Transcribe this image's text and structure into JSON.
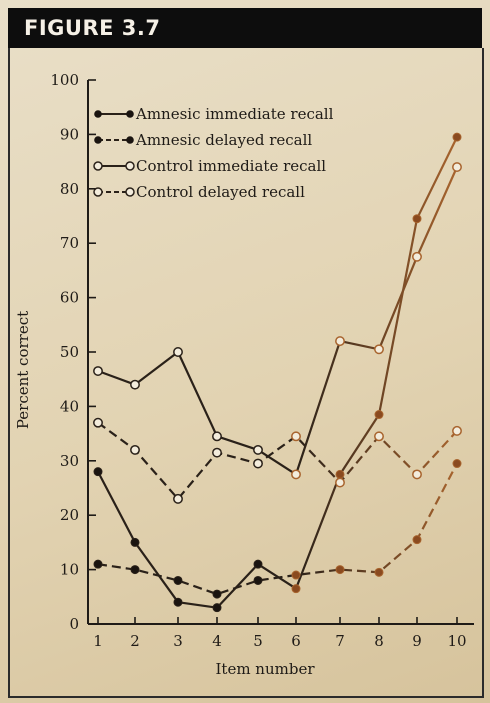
{
  "figure_label": "FIGURE 3.7",
  "chart_data": {
    "type": "line",
    "xlabel": "Item number",
    "ylabel": "Percent correct",
    "x": [
      1,
      2,
      3,
      4,
      5,
      6,
      7,
      8,
      9,
      10
    ],
    "xlim": [
      0.5,
      10.5
    ],
    "ylim": [
      0,
      100
    ],
    "yticks": [
      0,
      10,
      20,
      30,
      40,
      50,
      60,
      70,
      80,
      90,
      100
    ],
    "grid": false,
    "legend_position": "top-left",
    "series": [
      {
        "name": "Amnesic immediate recall",
        "marker": "filled",
        "dash": "solid",
        "values": [
          28,
          15,
          4,
          3,
          11,
          6.5,
          27.5,
          38.5,
          74.5,
          89.5
        ]
      },
      {
        "name": "Amnesic delayed recall",
        "marker": "filled",
        "dash": "dashed",
        "values": [
          11,
          10,
          8,
          5.5,
          8,
          9,
          10,
          9.5,
          15.5,
          29.5
        ]
      },
      {
        "name": "Control immediate recall",
        "marker": "open",
        "dash": "solid",
        "values": [
          46.5,
          44,
          50,
          34.5,
          32,
          27.5,
          52,
          50.5,
          67.5,
          84
        ]
      },
      {
        "name": "Control delayed recall",
        "marker": "open",
        "dash": "dashed",
        "values": [
          37,
          32,
          23,
          31.5,
          29.5,
          34.5,
          26,
          34.5,
          27.5,
          35.5
        ]
      }
    ],
    "colors": {
      "ink": "#2a2119",
      "ink_right": "#a8642e",
      "marker_fill": "#1a1410",
      "open_fill": "#f3ecdc"
    }
  }
}
